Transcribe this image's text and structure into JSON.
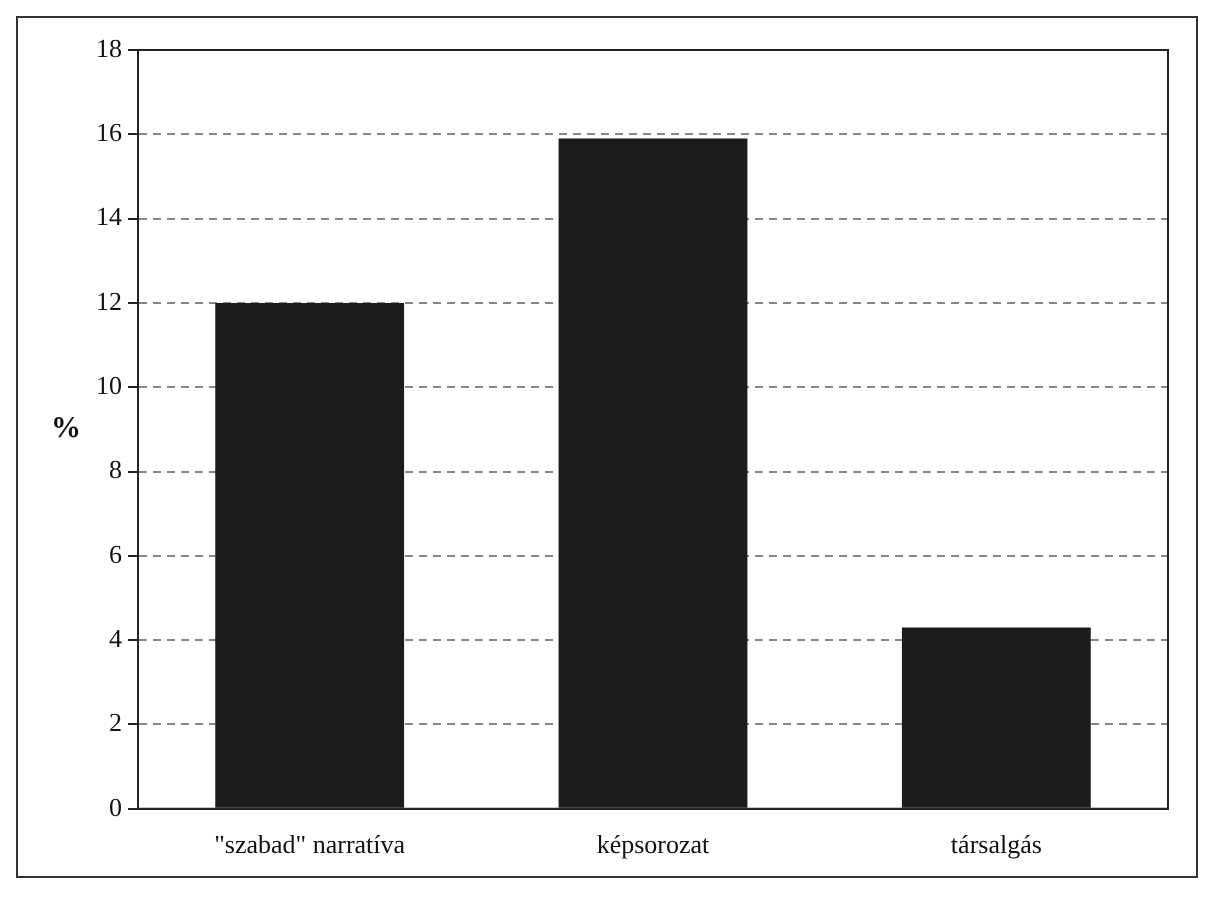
{
  "chart_data": {
    "type": "bar",
    "ylabel": "%",
    "categories": [
      "\"szabad\" narratíva",
      "képsorozat",
      "társalgás"
    ],
    "values": [
      12.0,
      15.9,
      4.3
    ],
    "color": "#1c1c1c",
    "ylim": [
      0,
      18
    ],
    "yticks": [
      0,
      2,
      4,
      6,
      8,
      10,
      12,
      14,
      16,
      18
    ],
    "grid": "y"
  }
}
